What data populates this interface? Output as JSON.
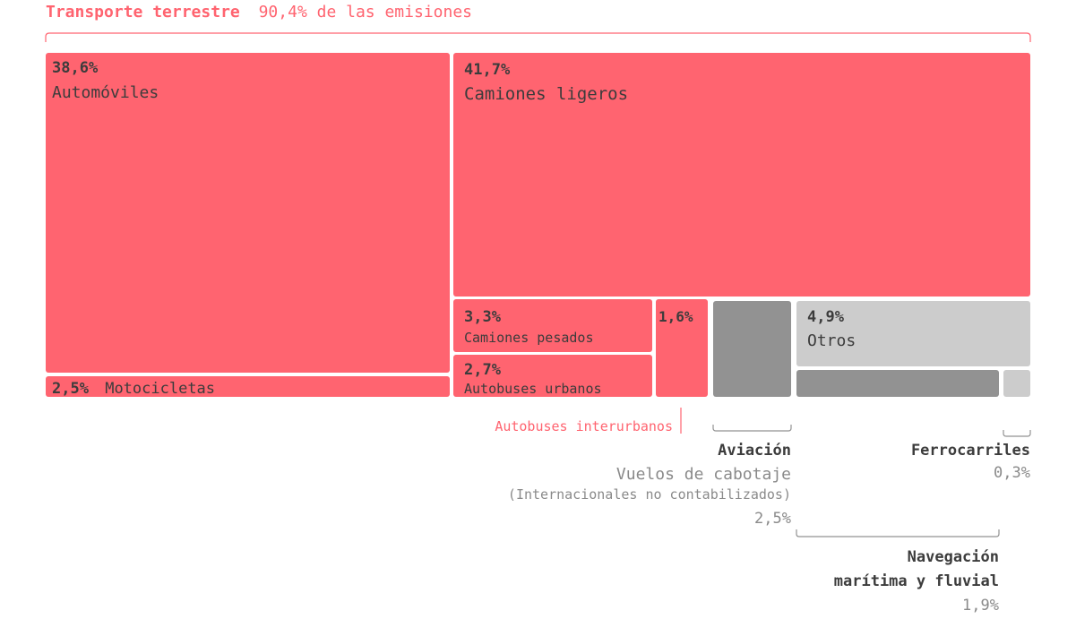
{
  "header": {
    "title_bold": "Transporte terrestre",
    "title_rest": "90,4% de las emisiones"
  },
  "colors": {
    "road": "#ff6470",
    "other_light": "#cccccc",
    "other_dark": "#929292",
    "text_dark": "#3c3c3c",
    "text_grey": "#8a8a8a",
    "bracket": "#ff6470",
    "bracket_grey": "#929292"
  },
  "chart_data": {
    "type": "treemap",
    "title": "Transporte terrestre 90,4% de las emisiones",
    "unit": "%",
    "groups": [
      {
        "name": "Transporte terrestre",
        "total": 90.4,
        "total_label": "90,4%",
        "items": [
          {
            "label": "Automóviles",
            "value": 38.6,
            "value_label": "38,6%"
          },
          {
            "label": "Motocicletas",
            "value": 2.5,
            "value_label": "2,5%"
          },
          {
            "label": "Camiones ligeros",
            "value": 41.7,
            "value_label": "41,7%"
          },
          {
            "label": "Camiones pesados",
            "value": 3.3,
            "value_label": "3,3%"
          },
          {
            "label": "Autobuses urbanos",
            "value": 2.7,
            "value_label": "2,7%"
          },
          {
            "label": "Autobuses interurbanos",
            "value": 1.6,
            "value_label": "1,6%"
          }
        ]
      },
      {
        "name": "Aviación",
        "total": 2.5,
        "items": [
          {
            "label": "Vuelos de cabotaje",
            "note": "(Internacionales no contabilizados)",
            "value": 2.5,
            "value_label": "2,5%"
          }
        ]
      },
      {
        "name": "Otros",
        "total": 4.9,
        "items": [
          {
            "label": "Otros",
            "value": 4.9,
            "value_label": "4,9%"
          }
        ]
      },
      {
        "name": "Navegación marítima y fluvial",
        "total": 1.9,
        "items": [
          {
            "label": "Navegación marítima y fluvial",
            "value": 1.9,
            "value_label": "1,9%"
          }
        ]
      },
      {
        "name": "Ferrocarriles",
        "total": 0.3,
        "items": [
          {
            "label": "Ferrocarriles",
            "value": 0.3,
            "value_label": "0,3%"
          }
        ]
      }
    ]
  },
  "annotations": {
    "interurban": "Autobuses interurbanos",
    "aviation_title": "Aviación",
    "aviation_sub": "Vuelos de cabotaje",
    "aviation_note": "(Internacionales no contabilizados)",
    "aviation_value": "2,5%",
    "rail_title": "Ferrocarriles",
    "rail_value": "0,3%",
    "nav_title_1": "Navegación",
    "nav_title_2": "marítima y fluvial",
    "nav_value": "1,9%"
  }
}
